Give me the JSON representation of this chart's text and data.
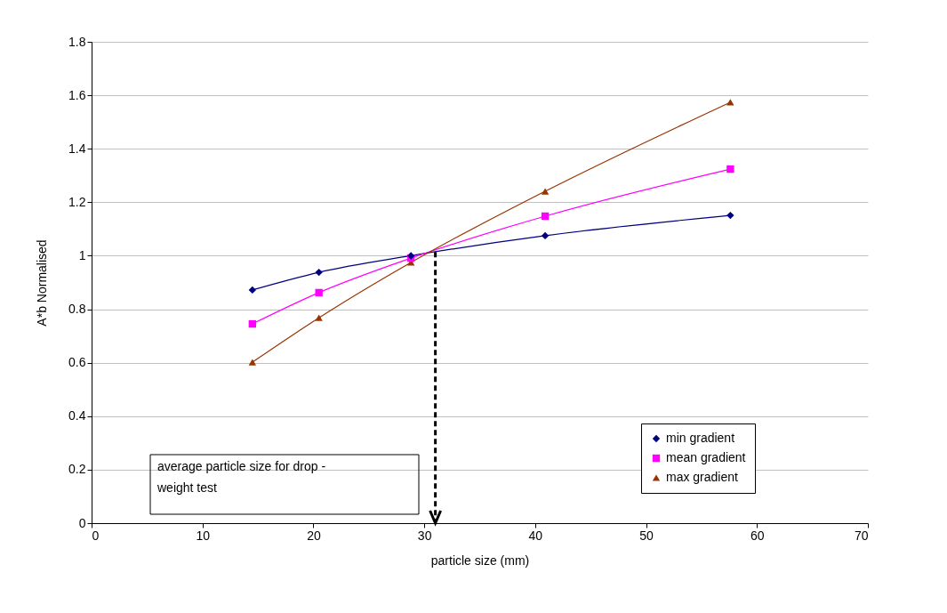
{
  "chart_data": {
    "type": "line",
    "xlabel": "particle size (mm)",
    "ylabel": "A*b Normalised",
    "x": [
      14.5,
      20.5,
      28.8,
      40.9,
      57.6
    ],
    "series": [
      {
        "name": "min gradient",
        "color": "#000080",
        "marker": "diamond",
        "values": [
          0.872,
          0.938,
          1.0,
          1.075,
          1.151
        ]
      },
      {
        "name": "mean gradient",
        "color": "#ff00ff",
        "marker": "square",
        "values": [
          0.745,
          0.862,
          0.991,
          1.148,
          1.324
        ]
      },
      {
        "name": "max gradient",
        "color": "#993300",
        "marker": "triangle",
        "values": [
          0.602,
          0.768,
          0.975,
          1.241,
          1.574
        ]
      }
    ],
    "xlim": [
      0,
      70
    ],
    "xticks": [
      0,
      10,
      20,
      30,
      40,
      50,
      60,
      70
    ],
    "ylim": [
      0,
      1.8
    ],
    "yticks": [
      {
        "value": 0,
        "label": "0"
      },
      0.2,
      0.4,
      0.6,
      0.8,
      {
        "value": 1,
        "label": "1"
      },
      1.2,
      1.4,
      1.6,
      1.8
    ],
    "grid": "y",
    "legend": "bottom right",
    "ref_lines": [
      {
        "axis": "x",
        "value": 31,
        "line_style": "dashed",
        "color": "#000000"
      }
    ],
    "annotations": [
      "average particle size for drop - weight test"
    ]
  }
}
